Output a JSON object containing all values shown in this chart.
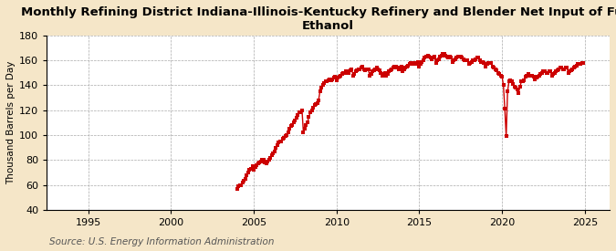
{
  "title": "Monthly Refining District Indiana-Illinois-Kentucky Refinery and Blender Net Input of Fuel\nEthanol",
  "ylabel": "Thousand Barrels per Day",
  "source": "Source: U.S. Energy Information Administration",
  "fig_background_color": "#f5e6c8",
  "plot_background_color": "#ffffff",
  "line_color": "#cc0000",
  "marker": "s",
  "markersize": 2.5,
  "linewidth": 1.0,
  "ylim": [
    40,
    180
  ],
  "xlim_start": 1992.5,
  "xlim_end": 2026.5,
  "yticks": [
    40,
    60,
    80,
    100,
    120,
    140,
    160,
    180
  ],
  "xticks": [
    1995,
    2000,
    2005,
    2010,
    2015,
    2020,
    2025
  ],
  "grid_color": "#aaaaaa",
  "grid_style": "--",
  "title_fontsize": 9.5,
  "axis_label_fontsize": 7.5,
  "tick_fontsize": 8,
  "source_fontsize": 7.5,
  "data": [
    [
      2004.0,
      57
    ],
    [
      2004.083,
      59
    ],
    [
      2004.167,
      60
    ],
    [
      2004.25,
      60
    ],
    [
      2004.333,
      62
    ],
    [
      2004.417,
      63
    ],
    [
      2004.5,
      65
    ],
    [
      2004.583,
      68
    ],
    [
      2004.667,
      70
    ],
    [
      2004.75,
      72
    ],
    [
      2004.833,
      73
    ],
    [
      2004.917,
      75
    ],
    [
      2005.0,
      72
    ],
    [
      2005.083,
      74
    ],
    [
      2005.167,
      76
    ],
    [
      2005.25,
      77
    ],
    [
      2005.333,
      78
    ],
    [
      2005.417,
      79
    ],
    [
      2005.5,
      80
    ],
    [
      2005.583,
      80
    ],
    [
      2005.667,
      78
    ],
    [
      2005.75,
      77
    ],
    [
      2005.833,
      79
    ],
    [
      2005.917,
      80
    ],
    [
      2006.0,
      82
    ],
    [
      2006.083,
      84
    ],
    [
      2006.167,
      85
    ],
    [
      2006.25,
      87
    ],
    [
      2006.333,
      90
    ],
    [
      2006.417,
      92
    ],
    [
      2006.5,
      94
    ],
    [
      2006.583,
      95
    ],
    [
      2006.667,
      95
    ],
    [
      2006.75,
      97
    ],
    [
      2006.833,
      98
    ],
    [
      2006.917,
      99
    ],
    [
      2007.0,
      100
    ],
    [
      2007.083,
      102
    ],
    [
      2007.167,
      105
    ],
    [
      2007.25,
      107
    ],
    [
      2007.333,
      108
    ],
    [
      2007.417,
      110
    ],
    [
      2007.5,
      112
    ],
    [
      2007.583,
      114
    ],
    [
      2007.667,
      116
    ],
    [
      2007.75,
      118
    ],
    [
      2007.833,
      118
    ],
    [
      2007.917,
      120
    ],
    [
      2008.0,
      102
    ],
    [
      2008.083,
      105
    ],
    [
      2008.167,
      108
    ],
    [
      2008.25,
      110
    ],
    [
      2008.333,
      115
    ],
    [
      2008.417,
      118
    ],
    [
      2008.5,
      120
    ],
    [
      2008.583,
      122
    ],
    [
      2008.667,
      124
    ],
    [
      2008.75,
      125
    ],
    [
      2008.833,
      126
    ],
    [
      2008.917,
      128
    ],
    [
      2009.0,
      135
    ],
    [
      2009.083,
      138
    ],
    [
      2009.167,
      140
    ],
    [
      2009.25,
      142
    ],
    [
      2009.333,
      143
    ],
    [
      2009.417,
      143
    ],
    [
      2009.5,
      144
    ],
    [
      2009.583,
      145
    ],
    [
      2009.667,
      144
    ],
    [
      2009.75,
      145
    ],
    [
      2009.833,
      146
    ],
    [
      2009.917,
      147
    ],
    [
      2010.0,
      144
    ],
    [
      2010.083,
      146
    ],
    [
      2010.167,
      147
    ],
    [
      2010.25,
      148
    ],
    [
      2010.333,
      149
    ],
    [
      2010.417,
      150
    ],
    [
      2010.5,
      150
    ],
    [
      2010.583,
      151
    ],
    [
      2010.667,
      151
    ],
    [
      2010.75,
      150
    ],
    [
      2010.833,
      152
    ],
    [
      2010.917,
      153
    ],
    [
      2011.0,
      148
    ],
    [
      2011.083,
      149
    ],
    [
      2011.167,
      151
    ],
    [
      2011.25,
      152
    ],
    [
      2011.333,
      153
    ],
    [
      2011.417,
      153
    ],
    [
      2011.5,
      154
    ],
    [
      2011.583,
      155
    ],
    [
      2011.667,
      153
    ],
    [
      2011.75,
      152
    ],
    [
      2011.833,
      153
    ],
    [
      2011.917,
      153
    ],
    [
      2012.0,
      148
    ],
    [
      2012.083,
      149
    ],
    [
      2012.167,
      151
    ],
    [
      2012.25,
      152
    ],
    [
      2012.333,
      153
    ],
    [
      2012.417,
      154
    ],
    [
      2012.5,
      153
    ],
    [
      2012.583,
      152
    ],
    [
      2012.667,
      150
    ],
    [
      2012.75,
      148
    ],
    [
      2012.833,
      149
    ],
    [
      2012.917,
      150
    ],
    [
      2013.0,
      148
    ],
    [
      2013.083,
      149
    ],
    [
      2013.167,
      151
    ],
    [
      2013.25,
      152
    ],
    [
      2013.333,
      153
    ],
    [
      2013.417,
      154
    ],
    [
      2013.5,
      155
    ],
    [
      2013.583,
      155
    ],
    [
      2013.667,
      154
    ],
    [
      2013.75,
      153
    ],
    [
      2013.833,
      154
    ],
    [
      2013.917,
      155
    ],
    [
      2014.0,
      151
    ],
    [
      2014.083,
      153
    ],
    [
      2014.167,
      154
    ],
    [
      2014.25,
      155
    ],
    [
      2014.333,
      156
    ],
    [
      2014.417,
      157
    ],
    [
      2014.5,
      158
    ],
    [
      2014.583,
      158
    ],
    [
      2014.667,
      157
    ],
    [
      2014.75,
      157
    ],
    [
      2014.833,
      158
    ],
    [
      2014.917,
      159
    ],
    [
      2015.0,
      155
    ],
    [
      2015.083,
      157
    ],
    [
      2015.167,
      159
    ],
    [
      2015.25,
      160
    ],
    [
      2015.333,
      162
    ],
    [
      2015.417,
      163
    ],
    [
      2015.5,
      164
    ],
    [
      2015.583,
      163
    ],
    [
      2015.667,
      162
    ],
    [
      2015.75,
      161
    ],
    [
      2015.833,
      162
    ],
    [
      2015.917,
      163
    ],
    [
      2016.0,
      158
    ],
    [
      2016.083,
      160
    ],
    [
      2016.167,
      161
    ],
    [
      2016.25,
      163
    ],
    [
      2016.333,
      164
    ],
    [
      2016.417,
      165
    ],
    [
      2016.5,
      165
    ],
    [
      2016.583,
      164
    ],
    [
      2016.667,
      163
    ],
    [
      2016.75,
      162
    ],
    [
      2016.833,
      163
    ],
    [
      2016.917,
      162
    ],
    [
      2017.0,
      159
    ],
    [
      2017.083,
      160
    ],
    [
      2017.167,
      161
    ],
    [
      2017.25,
      162
    ],
    [
      2017.333,
      163
    ],
    [
      2017.417,
      163
    ],
    [
      2017.5,
      163
    ],
    [
      2017.583,
      162
    ],
    [
      2017.667,
      161
    ],
    [
      2017.75,
      160
    ],
    [
      2017.833,
      160
    ],
    [
      2017.917,
      160
    ],
    [
      2018.0,
      157
    ],
    [
      2018.083,
      158
    ],
    [
      2018.167,
      159
    ],
    [
      2018.25,
      160
    ],
    [
      2018.333,
      160
    ],
    [
      2018.417,
      161
    ],
    [
      2018.5,
      162
    ],
    [
      2018.583,
      162
    ],
    [
      2018.667,
      160
    ],
    [
      2018.75,
      159
    ],
    [
      2018.833,
      159
    ],
    [
      2018.917,
      158
    ],
    [
      2019.0,
      155
    ],
    [
      2019.083,
      157
    ],
    [
      2019.167,
      158
    ],
    [
      2019.25,
      158
    ],
    [
      2019.333,
      158
    ],
    [
      2019.417,
      155
    ],
    [
      2019.5,
      154
    ],
    [
      2019.583,
      153
    ],
    [
      2019.667,
      152
    ],
    [
      2019.75,
      150
    ],
    [
      2019.833,
      149
    ],
    [
      2019.917,
      148
    ],
    [
      2020.0,
      147
    ],
    [
      2020.083,
      140
    ],
    [
      2020.167,
      121
    ],
    [
      2020.25,
      99
    ],
    [
      2020.333,
      135
    ],
    [
      2020.417,
      143
    ],
    [
      2020.5,
      144
    ],
    [
      2020.583,
      143
    ],
    [
      2020.667,
      141
    ],
    [
      2020.75,
      139
    ],
    [
      2020.833,
      138
    ],
    [
      2020.917,
      137
    ],
    [
      2021.0,
      134
    ],
    [
      2021.083,
      139
    ],
    [
      2021.167,
      143
    ],
    [
      2021.25,
      143
    ],
    [
      2021.333,
      144
    ],
    [
      2021.417,
      147
    ],
    [
      2021.5,
      148
    ],
    [
      2021.583,
      149
    ],
    [
      2021.667,
      148
    ],
    [
      2021.75,
      148
    ],
    [
      2021.833,
      148
    ],
    [
      2021.917,
      147
    ],
    [
      2022.0,
      145
    ],
    [
      2022.083,
      146
    ],
    [
      2022.167,
      147
    ],
    [
      2022.25,
      148
    ],
    [
      2022.333,
      149
    ],
    [
      2022.417,
      150
    ],
    [
      2022.5,
      151
    ],
    [
      2022.583,
      151
    ],
    [
      2022.667,
      150
    ],
    [
      2022.75,
      150
    ],
    [
      2022.833,
      151
    ],
    [
      2022.917,
      151
    ],
    [
      2023.0,
      148
    ],
    [
      2023.083,
      149
    ],
    [
      2023.167,
      150
    ],
    [
      2023.25,
      151
    ],
    [
      2023.333,
      152
    ],
    [
      2023.417,
      153
    ],
    [
      2023.5,
      154
    ],
    [
      2023.583,
      154
    ],
    [
      2023.667,
      153
    ],
    [
      2023.75,
      153
    ],
    [
      2023.833,
      154
    ],
    [
      2023.917,
      154
    ],
    [
      2024.0,
      150
    ],
    [
      2024.083,
      151
    ],
    [
      2024.167,
      152
    ],
    [
      2024.25,
      153
    ],
    [
      2024.333,
      154
    ],
    [
      2024.417,
      155
    ],
    [
      2024.5,
      156
    ],
    [
      2024.583,
      157
    ],
    [
      2024.667,
      157
    ],
    [
      2024.75,
      157
    ],
    [
      2024.833,
      158
    ],
    [
      2024.917,
      158
    ]
  ]
}
